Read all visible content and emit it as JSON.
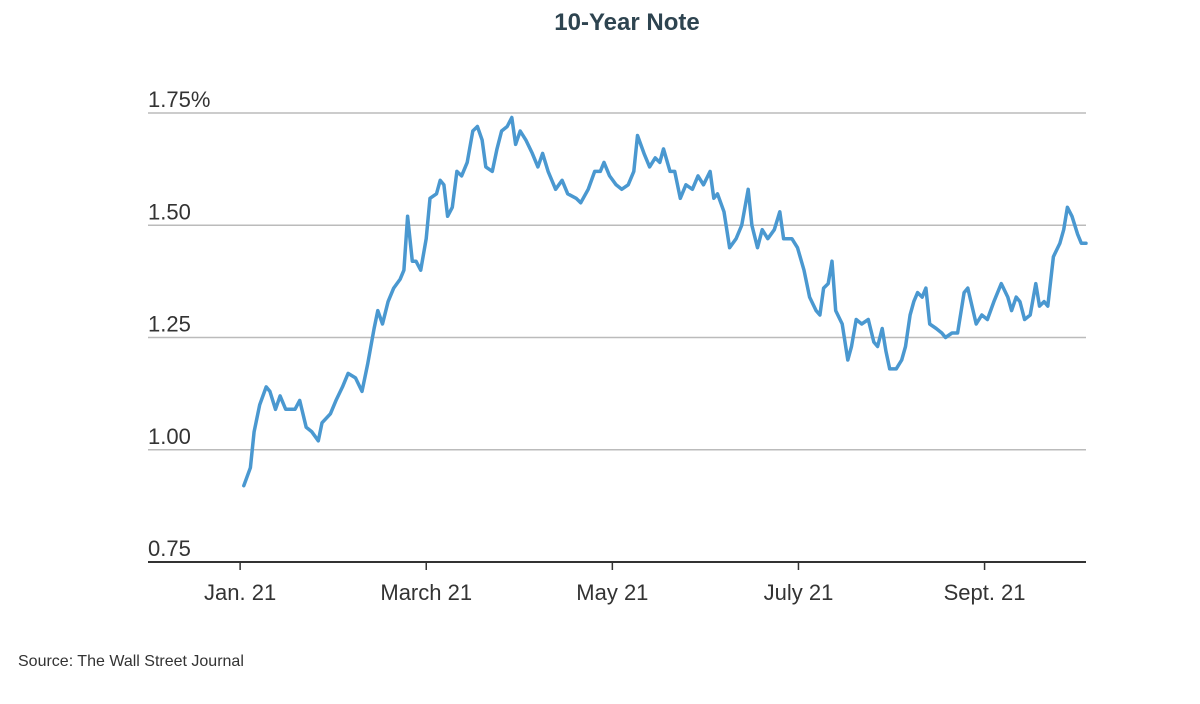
{
  "chart_data": {
    "type": "line",
    "title": "10-Year Note",
    "source": "Source: The Wall Street Journal",
    "x": [
      0.04,
      0.11,
      0.15,
      0.21,
      0.28,
      0.32,
      0.38,
      0.43,
      0.49,
      0.59,
      0.64,
      0.71,
      0.77,
      0.84,
      0.88,
      0.97,
      1.03,
      1.1,
      1.16,
      1.24,
      1.31,
      1.37,
      1.44,
      1.48,
      1.53,
      1.59,
      1.65,
      1.72,
      1.76,
      1.8,
      1.85,
      1.89,
      1.94,
      2.0,
      2.04,
      2.11,
      2.15,
      2.19,
      2.23,
      2.28,
      2.33,
      2.38,
      2.44,
      2.5,
      2.55,
      2.6,
      2.64,
      2.71,
      2.76,
      2.81,
      2.87,
      2.92,
      2.96,
      3.01,
      3.07,
      3.14,
      3.2,
      3.25,
      3.31,
      3.39,
      3.46,
      3.52,
      3.61,
      3.66,
      3.74,
      3.81,
      3.87,
      3.91,
      3.97,
      4.04,
      4.1,
      4.17,
      4.23,
      4.27,
      4.34,
      4.4,
      4.46,
      4.51,
      4.55,
      4.62,
      4.67,
      4.73,
      4.79,
      4.86,
      4.92,
      4.98,
      5.05,
      5.09,
      5.13,
      5.2,
      5.26,
      5.33,
      5.39,
      5.46,
      5.5,
      5.56,
      5.61,
      5.67,
      5.74,
      5.8,
      5.84,
      5.93,
      5.99,
      6.06,
      6.12,
      6.19,
      6.23,
      6.27,
      6.32,
      6.36,
      6.4,
      6.47,
      6.53,
      6.57,
      6.62,
      6.68,
      6.75,
      6.81,
      6.85,
      6.9,
      6.94,
      6.98,
      7.05,
      7.11,
      7.15,
      7.2,
      7.24,
      7.28,
      7.33,
      7.37,
      7.41,
      7.48,
      7.54,
      7.58,
      7.65,
      7.71,
      7.78,
      7.82,
      7.91,
      7.97,
      8.03,
      8.1,
      8.18,
      8.25,
      8.29,
      8.34,
      8.38,
      8.43,
      8.49,
      8.55,
      8.59,
      8.64,
      8.68,
      8.74,
      8.81,
      8.85,
      8.89,
      8.94,
      9.0,
      9.04,
      9.09
    ],
    "series": [
      {
        "color": "#4a98d0",
        "values": [
          0.92,
          0.96,
          1.04,
          1.1,
          1.14,
          1.13,
          1.09,
          1.12,
          1.09,
          1.09,
          1.11,
          1.05,
          1.04,
          1.02,
          1.06,
          1.08,
          1.11,
          1.14,
          1.17,
          1.16,
          1.13,
          1.19,
          1.27,
          1.31,
          1.28,
          1.33,
          1.36,
          1.38,
          1.4,
          1.52,
          1.42,
          1.42,
          1.4,
          1.47,
          1.56,
          1.57,
          1.6,
          1.59,
          1.52,
          1.54,
          1.62,
          1.61,
          1.64,
          1.71,
          1.72,
          1.69,
          1.63,
          1.62,
          1.67,
          1.71,
          1.72,
          1.74,
          1.68,
          1.71,
          1.69,
          1.66,
          1.63,
          1.66,
          1.62,
          1.58,
          1.6,
          1.57,
          1.56,
          1.55,
          1.58,
          1.62,
          1.62,
          1.64,
          1.61,
          1.59,
          1.58,
          1.59,
          1.62,
          1.7,
          1.66,
          1.63,
          1.65,
          1.64,
          1.67,
          1.62,
          1.62,
          1.56,
          1.59,
          1.58,
          1.61,
          1.59,
          1.62,
          1.56,
          1.57,
          1.53,
          1.45,
          1.47,
          1.5,
          1.58,
          1.5,
          1.45,
          1.49,
          1.47,
          1.49,
          1.53,
          1.47,
          1.47,
          1.45,
          1.4,
          1.34,
          1.31,
          1.3,
          1.36,
          1.37,
          1.42,
          1.31,
          1.28,
          1.2,
          1.23,
          1.29,
          1.28,
          1.29,
          1.24,
          1.23,
          1.27,
          1.22,
          1.18,
          1.18,
          1.2,
          1.23,
          1.3,
          1.33,
          1.35,
          1.34,
          1.36,
          1.28,
          1.27,
          1.26,
          1.25,
          1.26,
          1.26,
          1.35,
          1.36,
          1.28,
          1.3,
          1.29,
          1.33,
          1.37,
          1.34,
          1.31,
          1.34,
          1.33,
          1.29,
          1.3,
          1.37,
          1.32,
          1.33,
          1.32,
          1.43,
          1.46,
          1.49,
          1.54,
          1.52,
          1.48,
          1.46,
          1.46
        ]
      }
    ],
    "xlim": [
      -0.99,
      9.09
    ],
    "xticks": [
      {
        "value": 0,
        "label": "Jan. 21"
      },
      {
        "value": 2,
        "label": "March 21"
      },
      {
        "value": 4,
        "label": "May 21"
      },
      {
        "value": 6,
        "label": "July 21"
      },
      {
        "value": 8,
        "label": "Sept. 21"
      }
    ],
    "ylim": [
      0.75,
      1.75
    ],
    "yticks": [
      0.75,
      {
        "value": 1.0,
        "label": "1.00"
      },
      1.25,
      {
        "value": 1.5,
        "label": "1.50"
      },
      {
        "value": 1.75,
        "label": "1.75%"
      }
    ],
    "grid": true
  }
}
